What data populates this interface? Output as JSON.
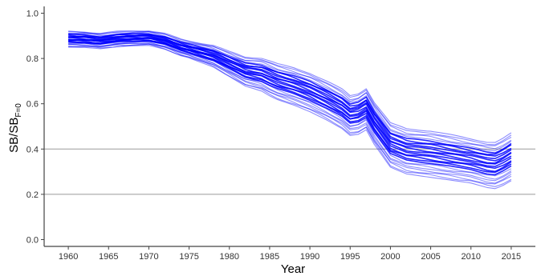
{
  "chart_data": {
    "type": "line",
    "title": "",
    "xlabel": "Year",
    "ylabel": {
      "main": "SB/SB",
      "subscript": "F=0"
    },
    "xlim": [
      1957,
      2018
    ],
    "ylim": [
      -0.03,
      1.03
    ],
    "x_ticks": [
      1960,
      1965,
      1970,
      1975,
      1980,
      1985,
      1990,
      1995,
      2000,
      2005,
      2010,
      2015
    ],
    "y_ticks": [
      0.0,
      0.2,
      0.4,
      0.6,
      0.8,
      1.0
    ],
    "y_tick_labels": [
      "0.0",
      "0.2",
      "0.4",
      "0.6",
      "0.8",
      "1.0"
    ],
    "reference_lines": [
      0.2,
      0.4
    ],
    "grid": false,
    "legend": "none",
    "line_color": "#0000ff",
    "reference_line_color": "#9a9a9a",
    "series_count": 24,
    "central_series": {
      "x": [
        1960,
        1962,
        1964,
        1966,
        1968,
        1970,
        1972,
        1974,
        1976,
        1978,
        1980,
        1982,
        1984,
        1986,
        1988,
        1990,
        1992,
        1994,
        1995,
        1996,
        1997,
        1998,
        2000,
        2002,
        2004,
        2006,
        2008,
        2010,
        2012,
        2013,
        2014,
        2015
      ],
      "y": [
        0.885,
        0.885,
        0.88,
        0.89,
        0.895,
        0.898,
        0.885,
        0.86,
        0.845,
        0.83,
        0.8,
        0.77,
        0.76,
        0.73,
        0.71,
        0.685,
        0.65,
        0.61,
        0.58,
        0.585,
        0.605,
        0.54,
        0.44,
        0.41,
        0.4,
        0.39,
        0.38,
        0.37,
        0.35,
        0.345,
        0.36,
        0.38
      ]
    },
    "spread": {
      "x": [
        1960,
        1970,
        1975,
        1980,
        1985,
        1990,
        1995,
        2000,
        2005,
        2010,
        2015
      ],
      "low_offset": [
        -0.035,
        -0.04,
        -0.05,
        -0.08,
        -0.11,
        -0.12,
        -0.12,
        -0.12,
        -0.12,
        -0.12,
        -0.12
      ],
      "high_offset": [
        0.035,
        0.025,
        0.025,
        0.03,
        0.045,
        0.05,
        0.055,
        0.075,
        0.085,
        0.075,
        0.09
      ]
    }
  }
}
